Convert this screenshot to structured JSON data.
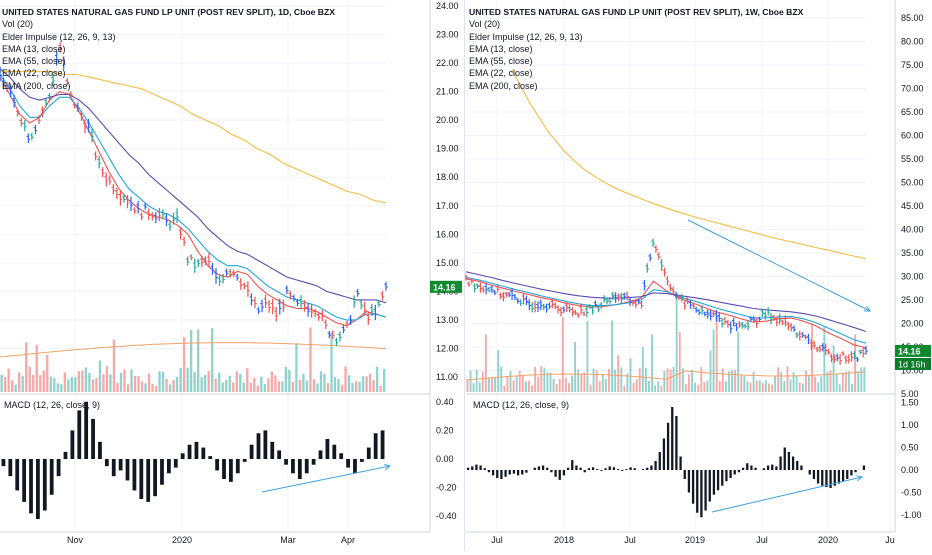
{
  "left": {
    "title": "UNITED STATES NATURAL GAS FUND LP UNIT (POST REV SPLIT), 1D, Cboe BZX",
    "indicators": [
      "Vol (20)",
      "Elder Impulse (12, 26, 9, 13)",
      "EMA (13, close)",
      "EMA (55, close)",
      "EMA (22, close)",
      "EMA (200, close)"
    ],
    "macd_label": "MACD (12, 26, close, 9)",
    "price_ticks": [
      "24.00",
      "23.00",
      "22.00",
      "21.00",
      "20.00",
      "19.00",
      "18.00",
      "17.00",
      "16.00",
      "15.00",
      "14.00",
      "13.00",
      "12.00",
      "11.00"
    ],
    "macd_ticks": [
      "0.40",
      "0.20",
      "0.00",
      "-0.20",
      "-0.40"
    ],
    "time_labels": [
      "Nov",
      "2020",
      "Mar",
      "Apr"
    ],
    "last_price": "14.16"
  },
  "right": {
    "title": "UNITED STATES NATURAL GAS FUND LP UNIT (POST REV SPLIT), 1W, Cboe BZX",
    "indicators": [
      "Vol (20)",
      "Elder Impulse (12, 26, 9, 13)",
      "EMA (13, close)",
      "EMA (55, close)",
      "EMA (22, close)",
      "EMA (200, close)"
    ],
    "macd_label": "MACD (12, 26, close, 9)",
    "price_ticks": [
      "85.00",
      "80.00",
      "75.00",
      "70.00",
      "65.00",
      "60.00",
      "55.00",
      "50.00",
      "45.00",
      "40.00",
      "35.00",
      "30.00",
      "25.00",
      "20.00",
      "15.00",
      "10.00",
      "5.00"
    ],
    "macd_ticks": [
      "1.50",
      "1.00",
      "0.50",
      "0.00",
      "-0.50",
      "-1.00"
    ],
    "time_labels": [
      "Jul",
      "2018",
      "Jul",
      "2019",
      "Jul",
      "2020",
      "Ju"
    ],
    "last_price": "14.16",
    "countdown": "1d 16h"
  },
  "colors": {
    "up": "#26a69a",
    "down": "#ef5350",
    "neutral": "#2962ff",
    "ema13": "#ef5350",
    "ema22": "#26a6e0",
    "ema55": "#5b4bb5",
    "ema200": "#f3bd41",
    "label_green": "#0f8a2f",
    "trend_arrow": "#3ea0e0"
  },
  "chart_data": [
    {
      "type": "line",
      "title": "UNITED STATES NATURAL GAS FUND LP UNIT (POST REV SPLIT), 1D, Cboe BZX",
      "x_labels": [
        "Nov",
        "2020",
        "Mar",
        "Apr"
      ],
      "ylim": [
        10.5,
        24.2
      ],
      "series": [
        {
          "name": "EMA (13, close)",
          "values": [
            21.5,
            20.9,
            20.2,
            19.9,
            20.1,
            20.7,
            21.0,
            20.9,
            20.3,
            19.6,
            18.9,
            18.2,
            17.6,
            17.2,
            16.9,
            16.7,
            16.6,
            16.5,
            16.3,
            16.0,
            15.4,
            14.9,
            14.6,
            14.5,
            14.7,
            14.6,
            14.2,
            13.9,
            13.7,
            13.5,
            13.4,
            13.4,
            13.3,
            13.1,
            12.9,
            12.8,
            13.0,
            13.3,
            13.2,
            13.1
          ]
        },
        {
          "name": "EMA (22, close)",
          "values": [
            21.6,
            21.1,
            20.5,
            20.1,
            20.1,
            20.5,
            20.8,
            20.8,
            20.4,
            19.9,
            19.3,
            18.7,
            18.1,
            17.6,
            17.3,
            17.0,
            16.8,
            16.7,
            16.5,
            16.2,
            15.8,
            15.4,
            15.1,
            14.9,
            14.9,
            14.8,
            14.5,
            14.2,
            14.0,
            13.8,
            13.7,
            13.6,
            13.5,
            13.3,
            13.1,
            13.0,
            13.0,
            13.2,
            13.2,
            13.1
          ]
        },
        {
          "name": "EMA (55, close)",
          "values": [
            21.8,
            21.5,
            21.1,
            20.8,
            20.7,
            20.8,
            20.9,
            20.9,
            20.7,
            20.4,
            20.0,
            19.6,
            19.2,
            18.8,
            18.5,
            18.1,
            17.8,
            17.5,
            17.2,
            16.9,
            16.6,
            16.2,
            15.9,
            15.6,
            15.4,
            15.3,
            15.1,
            14.9,
            14.7,
            14.5,
            14.4,
            14.3,
            14.2,
            14.0,
            13.9,
            13.8,
            13.7,
            13.7,
            13.7,
            13.6
          ]
        },
        {
          "name": "EMA (200, close)",
          "values": [
            21.7,
            21.7,
            21.7,
            21.7,
            21.7,
            21.6,
            21.6,
            21.5,
            21.4,
            21.3,
            21.2,
            21.1,
            20.9,
            20.7,
            20.5,
            20.2,
            20.0,
            19.8,
            19.5,
            19.3,
            19.0,
            18.8,
            18.5,
            18.3,
            18.1,
            17.9,
            17.7,
            17.5,
            17.4,
            17.2,
            17.1
          ]
        },
        {
          "name": "close",
          "values": [
            21.6,
            20.9,
            20.2,
            19.4,
            20.1,
            20.8,
            22.7,
            20.9,
            20.3,
            19.7,
            18.4,
            17.9,
            17.5,
            17.2,
            16.8,
            16.8,
            16.7,
            16.4,
            16.5,
            15.1,
            14.9,
            15.1,
            14.3,
            14.8,
            14.6,
            14.0,
            13.3,
            13.6,
            13.2,
            13.9,
            13.5,
            13.5,
            13.4,
            12.7,
            12.4,
            12.6,
            13.9,
            13.2,
            13.2,
            14.16
          ]
        }
      ],
      "macd": [
        -0.05,
        -0.12,
        -0.22,
        -0.3,
        -0.38,
        -0.42,
        -0.36,
        -0.25,
        -0.12,
        0.05,
        0.2,
        0.34,
        0.4,
        0.28,
        0.12,
        -0.05,
        -0.12,
        -0.08,
        -0.15,
        -0.22,
        -0.28,
        -0.3,
        -0.26,
        -0.18,
        -0.1,
        -0.06,
        0.04,
        0.1,
        0.12,
        0.08,
        0.02,
        -0.08,
        -0.14,
        -0.16,
        -0.1,
        -0.02,
        0.1,
        0.18,
        0.2,
        0.12,
        0.06,
        -0.04,
        -0.1,
        -0.14,
        -0.1,
        -0.04,
        0.06,
        0.14,
        0.1,
        0.04,
        -0.06,
        -0.1,
        -0.02,
        0.08,
        0.18,
        0.2
      ]
    },
    {
      "type": "line",
      "title": "UNITED STATES NATURAL GAS FUND LP UNIT (POST REV SPLIT), 1W, Cboe BZX",
      "x_labels": [
        "Jul",
        "2018",
        "Jul",
        "2019",
        "Jul",
        "2020",
        "Ju"
      ],
      "ylim": [
        5,
        88
      ],
      "series": [
        {
          "name": "EMA (13, close)",
          "values": [
            29.5,
            29.0,
            28.2,
            27.5,
            26.8,
            26.2,
            25.5,
            25.0,
            24.3,
            23.8,
            23.5,
            23.6,
            24.0,
            24.6,
            25.4,
            29.0,
            27.0,
            25.5,
            24.5,
            23.5,
            22.5,
            21.8,
            21.0,
            20.3,
            20.5,
            21.0,
            21.2,
            20.5,
            19.5,
            18.0,
            16.8,
            15.5,
            14.8
          ]
        },
        {
          "name": "EMA (22, close)",
          "values": [
            29.8,
            29.3,
            28.6,
            27.9,
            27.2,
            26.6,
            25.9,
            25.3,
            24.7,
            24.2,
            23.8,
            23.8,
            24.0,
            24.4,
            25.0,
            27.2,
            26.8,
            25.8,
            25.0,
            24.2,
            23.3,
            22.6,
            21.9,
            21.2,
            21.2,
            21.4,
            21.5,
            21.0,
            20.2,
            19.0,
            17.8,
            16.6,
            15.8
          ]
        },
        {
          "name": "EMA (55, close)",
          "values": [
            31.0,
            30.4,
            29.8,
            29.1,
            28.5,
            27.9,
            27.3,
            26.8,
            26.3,
            25.9,
            25.6,
            25.4,
            25.4,
            25.5,
            25.7,
            26.5,
            26.4,
            26.0,
            25.6,
            25.2,
            24.7,
            24.2,
            23.7,
            23.2,
            22.9,
            22.7,
            22.5,
            22.1,
            21.6,
            20.8,
            20.0,
            19.2,
            18.3
          ]
        },
        {
          "name": "EMA (200, close)",
          "values": [
            74.0,
            67.0,
            61.0,
            56.5,
            53.0,
            50.5,
            48.5,
            47.0,
            45.5,
            44.2,
            43.0,
            42.0,
            41.0,
            40.0,
            39.0,
            38.0,
            37.2,
            36.3,
            35.5,
            34.6,
            33.8
          ]
        },
        {
          "name": "close",
          "values": [
            29.0,
            28.0,
            27.5,
            26.0,
            25.5,
            24.0,
            24.5,
            23.5,
            23.0,
            22.5,
            23.0,
            24.5,
            26.0,
            25.0,
            24.0,
            38.0,
            30.0,
            25.0,
            24.0,
            22.0,
            21.5,
            20.0,
            19.5,
            20.5,
            22.0,
            21.0,
            19.0,
            17.0,
            15.0,
            13.5,
            13.0,
            12.5,
            14.16
          ]
        }
      ],
      "macd": [
        0.05,
        0.08,
        0.12,
        0.1,
        0.04,
        -0.05,
        -0.12,
        -0.18,
        -0.2,
        -0.15,
        -0.1,
        -0.08,
        -0.12,
        -0.1,
        -0.06,
        0.0,
        0.05,
        0.08,
        0.1,
        0.05,
        -0.05,
        -0.15,
        -0.22,
        -0.12,
        0.05,
        0.22,
        0.1,
        0.05,
        -0.05,
        0.04,
        0.06,
        0.02,
        -0.02,
        0.04,
        0.08,
        0.06,
        0.02,
        -0.02,
        0.02,
        0.06,
        0.04,
        0.0,
        0.02,
        0.05,
        0.1,
        0.2,
        0.4,
        0.7,
        1.05,
        1.4,
        1.2,
        0.3,
        -0.2,
        -0.5,
        -0.75,
        -0.95,
        -1.05,
        -0.9,
        -0.7,
        -0.55,
        -0.45,
        -0.35,
        -0.25,
        -0.18,
        -0.1,
        -0.05,
        0.05,
        0.15,
        0.1,
        0.05,
        0.0,
        0.04,
        0.1,
        0.12,
        0.08,
        0.3,
        0.5,
        0.4,
        0.3,
        0.2,
        0.1,
        0.0,
        -0.1,
        -0.2,
        -0.3,
        -0.35,
        -0.38,
        -0.4,
        -0.35,
        -0.3,
        -0.25,
        -0.2,
        -0.12,
        -0.05,
        0.0,
        0.1
      ]
    }
  ]
}
